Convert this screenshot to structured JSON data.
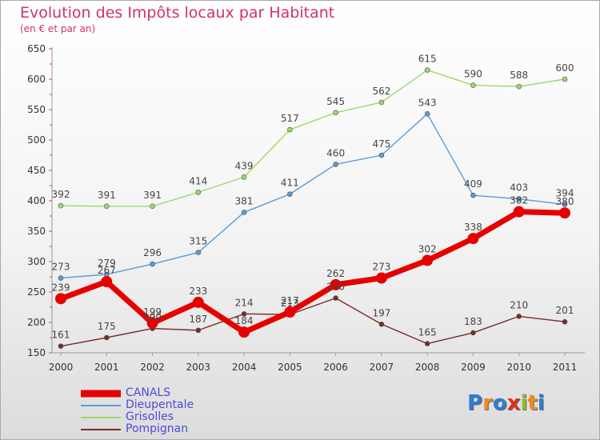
{
  "header": {
    "title": "Evolution des Impôts locaux par Habitant",
    "subtitle": "(en € et par an)"
  },
  "logo": {
    "text": "Proxiti",
    "letters": [
      "P",
      "r",
      "o",
      "x",
      "i",
      "t",
      "i"
    ],
    "colors": [
      "#2a7fd4",
      "#f28a1e",
      "#2a7fd4",
      "#e0301e",
      "#8bbf2f",
      "#f28a1e",
      "#2a7fd4"
    ]
  },
  "chart_data": {
    "type": "line",
    "title": "Evolution des Impôts locaux par Habitant",
    "subtitle": "(en € et par an)",
    "xlabel": "",
    "ylabel": "",
    "categories": [
      "2000",
      "2001",
      "2002",
      "2003",
      "2004",
      "2005",
      "2006",
      "2007",
      "2008",
      "2009",
      "2010",
      "2011"
    ],
    "ylim": [
      150,
      650
    ],
    "yticks": [
      150,
      200,
      250,
      300,
      350,
      400,
      450,
      500,
      550,
      600,
      650
    ],
    "grid": false,
    "legend": "bottom-left",
    "series": [
      {
        "name": "CANALS",
        "color": "#e60000",
        "emphasis": true,
        "values": [
          239,
          267,
          199,
          233,
          184,
          217,
          262,
          273,
          302,
          338,
          382,
          380
        ]
      },
      {
        "name": "Dieupentale",
        "color": "#5a9bd5",
        "emphasis": false,
        "values": [
          273,
          279,
          296,
          315,
          381,
          411,
          460,
          475,
          543,
          409,
          403,
          394
        ]
      },
      {
        "name": "Grisolles",
        "color": "#9ad96b",
        "emphasis": false,
        "values": [
          392,
          391,
          391,
          414,
          439,
          517,
          545,
          562,
          615,
          590,
          588,
          600
        ]
      },
      {
        "name": "Pompignan",
        "color": "#7a2a2a",
        "emphasis": false,
        "values": [
          161,
          175,
          190,
          187,
          214,
          213,
          240,
          197,
          165,
          183,
          210,
          201
        ]
      }
    ]
  }
}
